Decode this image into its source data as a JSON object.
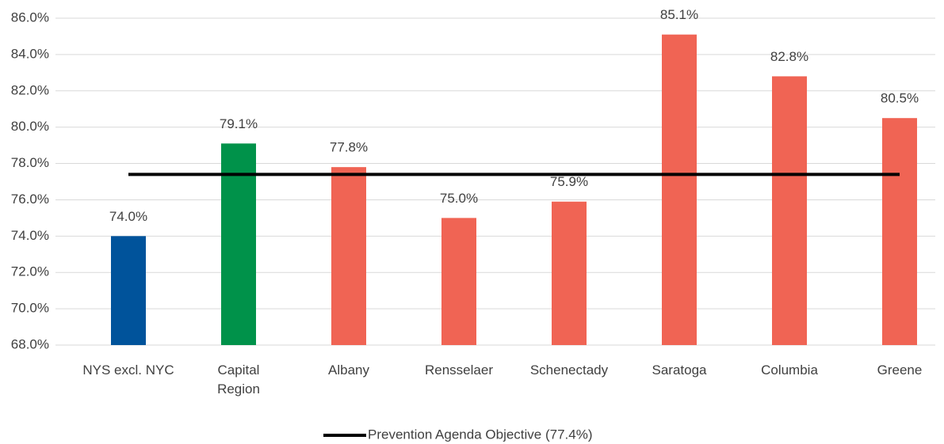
{
  "chart_data": {
    "type": "bar",
    "categories": [
      "NYS excl. NYC",
      "Capital\nRegion",
      "Albany",
      "Rensselaer",
      "Schenectady",
      "Saratoga",
      "Columbia",
      "Greene"
    ],
    "values": [
      74.0,
      79.1,
      77.8,
      75.0,
      75.9,
      85.1,
      82.8,
      80.5
    ],
    "value_labels": [
      "74.0%",
      "79.1%",
      "77.8%",
      "75.0%",
      "75.9%",
      "85.1%",
      "82.8%",
      "80.5%"
    ],
    "colors": [
      "#00539b",
      "#00924a",
      "#f06454",
      "#f06454",
      "#f06454",
      "#f06454",
      "#f06454",
      "#f06454"
    ],
    "ylim": [
      68,
      86
    ],
    "yticks": [
      {
        "value": 68,
        "label": "68.0%"
      },
      {
        "value": 70,
        "label": "70.0%"
      },
      {
        "value": 72,
        "label": "72.0%"
      },
      {
        "value": 74,
        "label": "74.0%"
      },
      {
        "value": 76,
        "label": "76.0%"
      },
      {
        "value": 78,
        "label": "78.0%"
      },
      {
        "value": 80,
        "label": "80.0%"
      },
      {
        "value": 82,
        "label": "82.0%"
      },
      {
        "value": 84,
        "label": "84.0%"
      },
      {
        "value": 86,
        "label": "86.0%"
      }
    ],
    "grid": true,
    "reference": {
      "name": "Prevention Agenda Objective (77.4%)",
      "value": 77.4,
      "color": "#000000"
    },
    "legend": "bottom"
  }
}
